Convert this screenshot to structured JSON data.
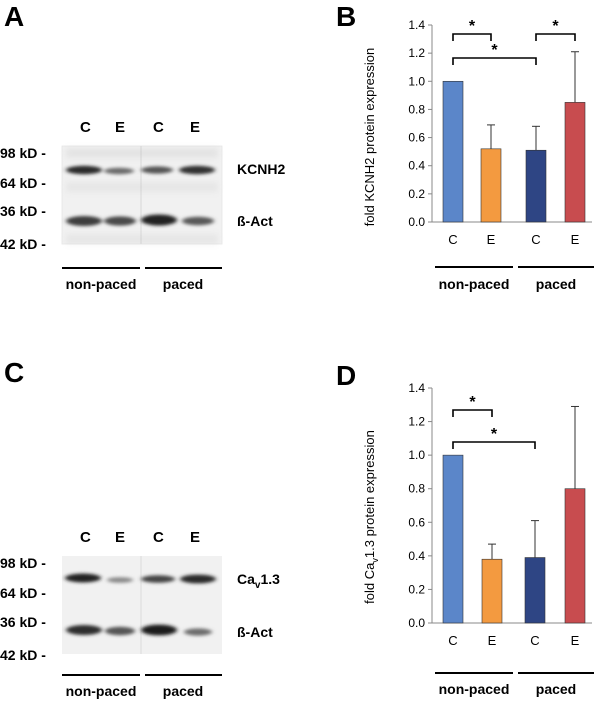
{
  "panels": {
    "A": {
      "letter": "A",
      "lanes": [
        "C",
        "E",
        "C",
        "E"
      ],
      "markers": [
        "98 kD -",
        "64 kD -",
        "36 kD -",
        "42 kD -"
      ],
      "band_labels": [
        "KCNH2",
        "ß-Act"
      ],
      "groups": [
        "non-paced",
        "paced"
      ]
    },
    "C": {
      "letter": "C",
      "lanes": [
        "C",
        "E",
        "C",
        "E"
      ],
      "markers": [
        "98 kD -",
        "64 kD -",
        "36 kD -",
        "42 kD -"
      ],
      "band_label_main": "Ca",
      "band_label_sub": "v",
      "band_label_tail": "1.3",
      "band_label_2": "ß-Act",
      "groups": [
        "non-paced",
        "paced"
      ]
    },
    "B": {
      "letter": "B",
      "groups": [
        "non-paced",
        "paced"
      ]
    },
    "D": {
      "letter": "D",
      "groups": [
        "non-paced",
        "paced"
      ]
    }
  },
  "chart_data": [
    {
      "panel": "B",
      "type": "bar",
      "categories": [
        "C",
        "E",
        "C",
        "E"
      ],
      "values": [
        1.0,
        0.52,
        0.51,
        0.85
      ],
      "errors": [
        0,
        0.17,
        0.17,
        0.36
      ],
      "bar_colors": [
        "#5b86c9",
        "#f39a40",
        "#2e4584",
        "#c84c4f"
      ],
      "ylabel": "fold KCNH2 protein expression",
      "ylim": [
        0,
        1.4
      ],
      "yticks": [
        "0.0",
        "0.2",
        "0.4",
        "0.6",
        "0.8",
        "1.0",
        "1.2",
        "1.4"
      ],
      "significance": [
        "*",
        "*",
        "*"
      ]
    },
    {
      "panel": "D",
      "type": "bar",
      "categories": [
        "C",
        "E",
        "C",
        "E"
      ],
      "values": [
        1.0,
        0.38,
        0.39,
        0.8
      ],
      "errors": [
        0,
        0.09,
        0.22,
        0.49
      ],
      "bar_colors": [
        "#5b86c9",
        "#f39a40",
        "#2e4584",
        "#c84c4f"
      ],
      "ylabel_main": "fold Ca",
      "ylabel_sub": "v",
      "ylabel_tail": "1.3 protein expression",
      "ylim": [
        0,
        1.4
      ],
      "yticks": [
        "0.0",
        "0.2",
        "0.4",
        "0.6",
        "0.8",
        "1.0",
        "1.2",
        "1.4"
      ],
      "significance": [
        "*",
        "*"
      ]
    }
  ]
}
